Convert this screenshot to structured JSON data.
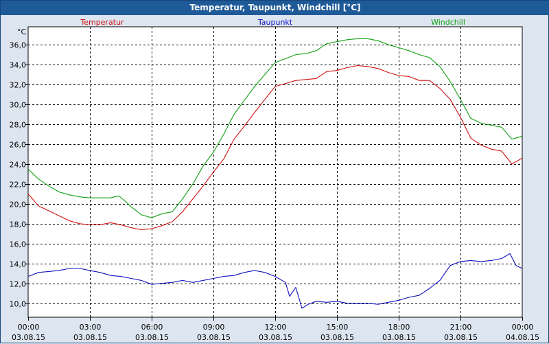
{
  "window": {
    "title": "Temperatur, Taupunkt, Windchill [°C]"
  },
  "chart_data": {
    "type": "line",
    "title": "Temperatur, Taupunkt, Windchill [°C]",
    "ylabel": "°C",
    "xlabel": "",
    "ylim": [
      8.6,
      37.8
    ],
    "xlim": [
      0,
      24
    ],
    "yticks": [
      "10,0",
      "12,0",
      "14,0",
      "16,0",
      "18,0",
      "20,0",
      "22,0",
      "24,0",
      "26,0",
      "28,0",
      "30,0",
      "32,0",
      "34,0",
      "36,0"
    ],
    "ytick_values": [
      10,
      12,
      14,
      16,
      18,
      20,
      22,
      24,
      26,
      28,
      30,
      32,
      34,
      36
    ],
    "xticks": [
      {
        "time": "00:00",
        "date": "03.08.15"
      },
      {
        "time": "03:00",
        "date": "03.08.15"
      },
      {
        "time": "06:00",
        "date": "03.08.15"
      },
      {
        "time": "09:00",
        "date": "03.08.15"
      },
      {
        "time": "12:00",
        "date": "03.08.15"
      },
      {
        "time": "15:00",
        "date": "03.08.15"
      },
      {
        "time": "18:00",
        "date": "03.08.15"
      },
      {
        "time": "21:00",
        "date": "03.08.15"
      },
      {
        "time": "00:00",
        "date": "04.08.15"
      }
    ],
    "xtick_values": [
      0,
      3,
      6,
      9,
      12,
      15,
      18,
      21,
      24
    ],
    "grid": true,
    "series": [
      {
        "name": "Temperatur",
        "color": "#d01010",
        "legend_pos": "left",
        "points": [
          [
            0,
            21.0
          ],
          [
            0.5,
            19.8
          ],
          [
            1,
            19.3
          ],
          [
            1.5,
            18.8
          ],
          [
            2,
            18.3
          ],
          [
            2.5,
            18.0
          ],
          [
            3,
            17.9
          ],
          [
            3.5,
            17.9
          ],
          [
            4,
            18.1
          ],
          [
            4.5,
            17.9
          ],
          [
            5,
            17.6
          ],
          [
            5.5,
            17.4
          ],
          [
            6,
            17.5
          ],
          [
            6.5,
            17.8
          ],
          [
            7,
            18.2
          ],
          [
            7.5,
            19.2
          ],
          [
            8,
            20.5
          ],
          [
            8.5,
            21.8
          ],
          [
            9,
            23.2
          ],
          [
            9.5,
            24.5
          ],
          [
            10,
            26.5
          ],
          [
            10.5,
            27.8
          ],
          [
            11,
            29.2
          ],
          [
            11.5,
            30.5
          ],
          [
            12,
            31.8
          ],
          [
            12.5,
            32.1
          ],
          [
            13,
            32.4
          ],
          [
            13.5,
            32.5
          ],
          [
            14,
            32.6
          ],
          [
            14.5,
            33.3
          ],
          [
            15,
            33.4
          ],
          [
            15.5,
            33.7
          ],
          [
            16,
            33.9
          ],
          [
            16.5,
            33.8
          ],
          [
            17,
            33.6
          ],
          [
            17.5,
            33.2
          ],
          [
            18,
            32.9
          ],
          [
            18.5,
            32.8
          ],
          [
            19,
            32.4
          ],
          [
            19.5,
            32.4
          ],
          [
            20,
            31.6
          ],
          [
            20.5,
            30.5
          ],
          [
            21,
            28.7
          ],
          [
            21.5,
            26.6
          ],
          [
            22,
            25.9
          ],
          [
            22.5,
            25.5
          ],
          [
            23,
            25.3
          ],
          [
            23.5,
            24.0
          ],
          [
            24,
            24.6
          ]
        ]
      },
      {
        "name": "Taupunkt",
        "color": "#1010c0",
        "legend_pos": "center",
        "points": [
          [
            0,
            12.7
          ],
          [
            0.5,
            13.1
          ],
          [
            1,
            13.2
          ],
          [
            1.5,
            13.3
          ],
          [
            2,
            13.5
          ],
          [
            2.5,
            13.5
          ],
          [
            3,
            13.3
          ],
          [
            3.5,
            13.1
          ],
          [
            4,
            12.8
          ],
          [
            4.5,
            12.7
          ],
          [
            5,
            12.5
          ],
          [
            5.5,
            12.3
          ],
          [
            6,
            11.9
          ],
          [
            6.5,
            12.0
          ],
          [
            7,
            12.1
          ],
          [
            7.5,
            12.3
          ],
          [
            8,
            12.1
          ],
          [
            8.5,
            12.3
          ],
          [
            9,
            12.5
          ],
          [
            9.5,
            12.7
          ],
          [
            10,
            12.8
          ],
          [
            10.5,
            13.1
          ],
          [
            11,
            13.3
          ],
          [
            11.5,
            13.1
          ],
          [
            12,
            12.7
          ],
          [
            12.5,
            12.1
          ],
          [
            12.7,
            10.7
          ],
          [
            13,
            11.6
          ],
          [
            13.3,
            9.5
          ],
          [
            13.6,
            9.9
          ],
          [
            14,
            10.2
          ],
          [
            14.5,
            10.1
          ],
          [
            15,
            10.2
          ],
          [
            15.5,
            10.0
          ],
          [
            16,
            10.0
          ],
          [
            16.5,
            10.0
          ],
          [
            17,
            9.9
          ],
          [
            17.5,
            10.1
          ],
          [
            18,
            10.3
          ],
          [
            18.5,
            10.6
          ],
          [
            19,
            10.8
          ],
          [
            19.5,
            11.5
          ],
          [
            20,
            12.3
          ],
          [
            20.5,
            13.8
          ],
          [
            21,
            14.2
          ],
          [
            21.5,
            14.3
          ],
          [
            22,
            14.2
          ],
          [
            22.5,
            14.3
          ],
          [
            23,
            14.5
          ],
          [
            23.4,
            15.0
          ],
          [
            23.7,
            13.8
          ],
          [
            24,
            13.5
          ]
        ]
      },
      {
        "name": "Windchill",
        "color": "#10a010",
        "legend_pos": "right",
        "points": [
          [
            0,
            23.5
          ],
          [
            0.5,
            22.5
          ],
          [
            1,
            21.8
          ],
          [
            1.5,
            21.2
          ],
          [
            2,
            20.9
          ],
          [
            2.5,
            20.7
          ],
          [
            3,
            20.6
          ],
          [
            3.5,
            20.6
          ],
          [
            4,
            20.6
          ],
          [
            4.4,
            20.8
          ],
          [
            4.7,
            20.3
          ],
          [
            5,
            19.7
          ],
          [
            5.5,
            18.9
          ],
          [
            6,
            18.6
          ],
          [
            6.5,
            19.0
          ],
          [
            7,
            19.2
          ],
          [
            7.5,
            20.5
          ],
          [
            8,
            22.0
          ],
          [
            8.5,
            23.8
          ],
          [
            9,
            25.2
          ],
          [
            9.5,
            27.0
          ],
          [
            10,
            29.0
          ],
          [
            10.5,
            30.4
          ],
          [
            11,
            31.8
          ],
          [
            11.5,
            33.0
          ],
          [
            12,
            34.2
          ],
          [
            12.5,
            34.6
          ],
          [
            13,
            35.0
          ],
          [
            13.5,
            35.1
          ],
          [
            14,
            35.4
          ],
          [
            14.5,
            36.1
          ],
          [
            15,
            36.3
          ],
          [
            15.5,
            36.5
          ],
          [
            16,
            36.6
          ],
          [
            16.5,
            36.6
          ],
          [
            17,
            36.4
          ],
          [
            17.5,
            36.0
          ],
          [
            18,
            35.7
          ],
          [
            18.5,
            35.4
          ],
          [
            19,
            35.0
          ],
          [
            19.5,
            34.7
          ],
          [
            20,
            33.8
          ],
          [
            20.5,
            32.3
          ],
          [
            21,
            30.5
          ],
          [
            21.5,
            28.6
          ],
          [
            22,
            28.1
          ],
          [
            22.5,
            27.9
          ],
          [
            23,
            27.7
          ],
          [
            23.5,
            26.5
          ],
          [
            24,
            26.8
          ]
        ]
      }
    ]
  }
}
